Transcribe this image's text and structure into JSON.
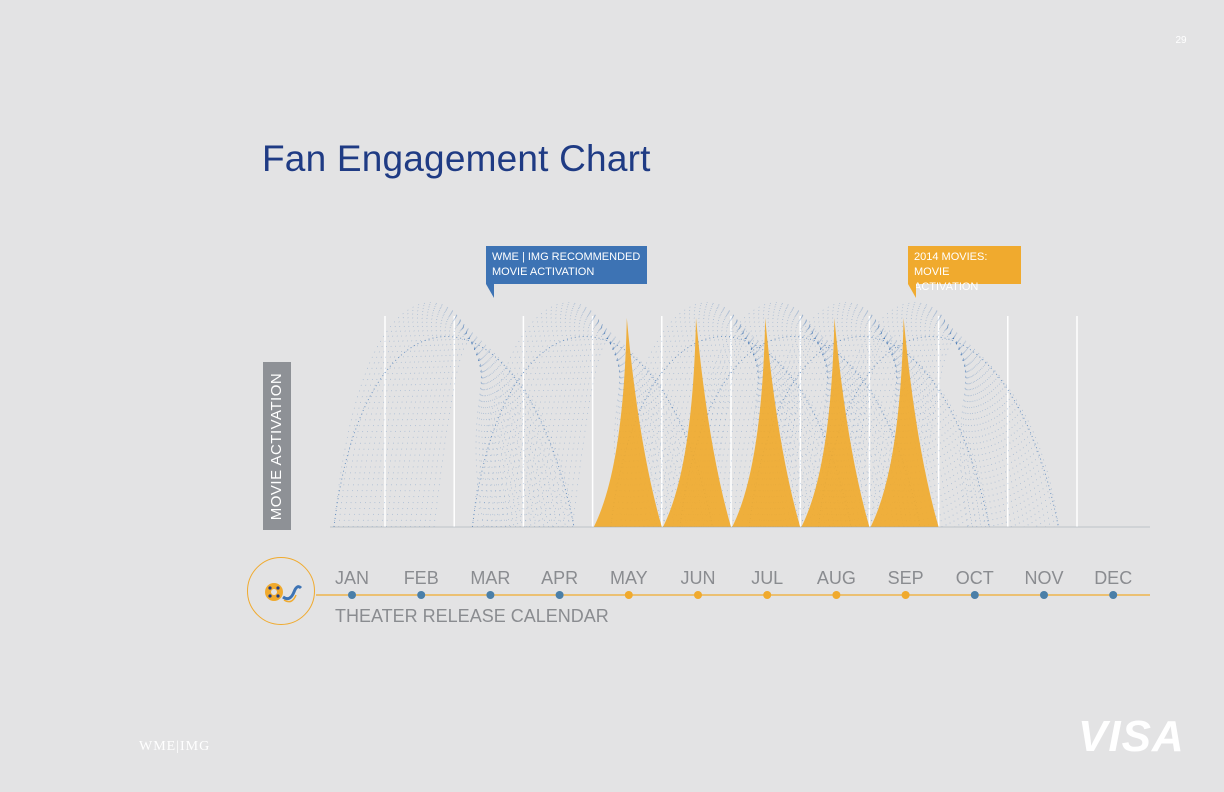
{
  "page": {
    "number": "29"
  },
  "title": "Fan Engagement Chart",
  "callouts": {
    "recommended": {
      "line1": "WME | IMG RECOMMENDED",
      "line2": "MOVIE ACTIVATION"
    },
    "movies_2014": {
      "line1": "2014 MOVIES:",
      "line2": "MOVIE ACTIVATION"
    }
  },
  "chart_data": {
    "type": "area",
    "ylabel": "MOVIE ACTIVATION",
    "xlabel": "THEATER RELEASE CALENDAR",
    "categories": [
      "JAN",
      "FEB",
      "MAR",
      "APR",
      "MAY",
      "JUN",
      "JUL",
      "AUG",
      "SEP",
      "OCT",
      "NOV",
      "DEC"
    ],
    "highlighted_months": [
      "MAY",
      "JUN",
      "JUL",
      "AUG",
      "SEP"
    ],
    "series": [
      {
        "name": "WME | IMG RECOMMENDED MOVIE ACTIVATION",
        "start_months": [
          "JAN",
          "MAR",
          "MAY",
          "JUN",
          "JUL",
          "AUG"
        ],
        "color": "#3d73b4"
      },
      {
        "name": "2014 MOVIES: MOVIE ACTIVATION",
        "peak_months": [
          "MAY",
          "JUN",
          "JUL",
          "AUG",
          "SEP"
        ],
        "color": "#f0aa2e"
      }
    ],
    "grid": true
  },
  "colors": {
    "accent_blue": "#3d73b4",
    "accent_orange": "#f0aa2e",
    "title_blue": "#1f3b84",
    "month_label": "#8a8c90"
  },
  "icons": {
    "badge": "film-reel-icon"
  },
  "logos": {
    "left": "WME|IMG",
    "right": "VISA"
  }
}
